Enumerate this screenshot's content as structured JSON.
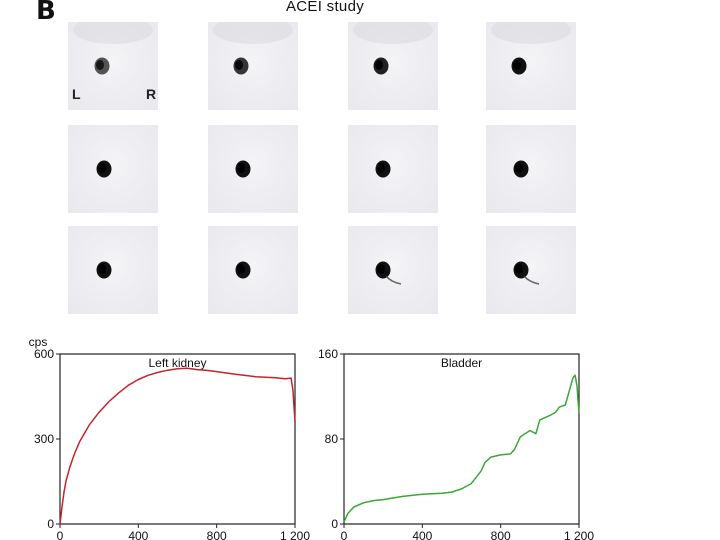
{
  "figure": {
    "panel_letter": "B",
    "study_title": "ACEI study",
    "orientation_labels": {
      "left": "L",
      "right": "R"
    }
  },
  "scan_frames": {
    "rows": 3,
    "columns": 4,
    "frames": [
      {
        "uptake": 0.55,
        "extra": "faint"
      },
      {
        "uptake": 0.75,
        "extra": "faint"
      },
      {
        "uptake": 0.9,
        "extra": "faint"
      },
      {
        "uptake": 1.0,
        "extra": "faint"
      },
      {
        "uptake": 1.0,
        "extra": "none"
      },
      {
        "uptake": 1.0,
        "extra": "none"
      },
      {
        "uptake": 1.0,
        "extra": "none"
      },
      {
        "uptake": 1.0,
        "extra": "none"
      },
      {
        "uptake": 1.0,
        "extra": "none"
      },
      {
        "uptake": 1.0,
        "extra": "none"
      },
      {
        "uptake": 1.0,
        "extra": "tail"
      },
      {
        "uptake": 1.0,
        "extra": "tail"
      }
    ]
  },
  "chart_data": [
    {
      "type": "line",
      "title": "Left kidney",
      "ylabel": "cps",
      "xlim": [
        0,
        1200
      ],
      "ylim": [
        0,
        600
      ],
      "x_ticks": [
        0,
        400,
        800,
        1200
      ],
      "x_tick_labels": [
        "0",
        "400",
        "800",
        "1 200"
      ],
      "y_ticks": [
        0,
        300,
        600
      ],
      "y_tick_labels": [
        "0",
        "300",
        "600"
      ],
      "color": "#c8232b",
      "x": [
        0,
        10,
        20,
        30,
        50,
        75,
        100,
        150,
        200,
        250,
        300,
        350,
        400,
        450,
        500,
        550,
        600,
        650,
        700,
        750,
        800,
        850,
        900,
        950,
        1000,
        1050,
        1100,
        1150,
        1180,
        1190,
        1200
      ],
      "y": [
        0,
        60,
        110,
        150,
        200,
        250,
        290,
        350,
        395,
        432,
        463,
        490,
        510,
        525,
        535,
        543,
        548,
        550,
        545,
        542,
        538,
        533,
        528,
        524,
        520,
        518,
        516,
        513,
        515,
        470,
        360
      ]
    },
    {
      "type": "line",
      "title": "Bladder",
      "ylabel": "",
      "xlim": [
        0,
        1200
      ],
      "ylim": [
        0,
        160
      ],
      "x_ticks": [
        0,
        400,
        800,
        1200
      ],
      "x_tick_labels": [
        "0",
        "400",
        "800",
        "1 200"
      ],
      "y_ticks": [
        0,
        80,
        160
      ],
      "y_tick_labels": [
        "0",
        "80",
        "160"
      ],
      "color": "#3aa835",
      "x": [
        0,
        20,
        50,
        100,
        150,
        200,
        300,
        400,
        500,
        550,
        600,
        650,
        700,
        720,
        750,
        800,
        850,
        870,
        900,
        950,
        980,
        1000,
        1050,
        1080,
        1100,
        1130,
        1150,
        1170,
        1180,
        1190,
        1200
      ],
      "y": [
        2,
        10,
        16,
        20,
        22,
        23,
        26,
        28,
        29,
        30,
        33,
        38,
        50,
        58,
        63,
        65,
        66,
        70,
        82,
        88,
        85,
        98,
        102,
        105,
        110,
        112,
        125,
        138,
        140,
        130,
        104
      ]
    }
  ]
}
